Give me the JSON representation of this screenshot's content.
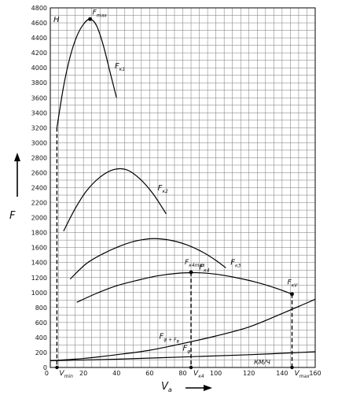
{
  "chart_data": {
    "type": "line",
    "xlim": [
      0,
      160
    ],
    "ylim": [
      0,
      4800
    ],
    "x_ticks": [
      0,
      20,
      40,
      60,
      80,
      100,
      120,
      140,
      160
    ],
    "y_ticks": [
      0,
      200,
      400,
      600,
      800,
      1000,
      1200,
      1400,
      1600,
      1800,
      2000,
      2200,
      2400,
      2600,
      2800,
      3000,
      3200,
      3400,
      3600,
      3800,
      4000,
      4200,
      4400,
      4600,
      4800
    ],
    "grid": true,
    "xlabel_main": "V",
    "xlabel_sub": "a",
    "ylabel": "F",
    "y_unit": "H",
    "x_unit": "КМ/Ч",
    "series": [
      {
        "name": "F",
        "name_sub": "к1",
        "x": [
          4,
          8,
          12,
          16,
          20,
          24,
          28,
          32,
          36,
          40
        ],
        "y": [
          3200,
          3750,
          4150,
          4420,
          4580,
          4650,
          4560,
          4300,
          3950,
          3600
        ]
      },
      {
        "name": "F",
        "name_sub": "к2",
        "x": [
          8,
          15,
          22,
          30,
          38,
          46,
          54,
          62,
          70
        ],
        "y": [
          1820,
          2120,
          2360,
          2540,
          2640,
          2640,
          2520,
          2320,
          2050
        ]
      },
      {
        "name": "F",
        "name_sub": "к3",
        "x": [
          12,
          22,
          32,
          42,
          52,
          62,
          72,
          82,
          92,
          100,
          106
        ],
        "y": [
          1180,
          1390,
          1520,
          1620,
          1690,
          1720,
          1700,
          1640,
          1540,
          1430,
          1330
        ]
      },
      {
        "name": "F",
        "name_sub": "к4",
        "x": [
          16,
          28,
          40,
          52,
          64,
          76,
          88,
          100,
          112,
          124,
          136,
          146
        ],
        "y": [
          870,
          990,
          1090,
          1160,
          1220,
          1255,
          1265,
          1245,
          1200,
          1140,
          1060,
          980
        ]
      },
      {
        "name": "F",
        "name_sub": "φ + F",
        "name_sub2": "в",
        "x": [
          0,
          20,
          40,
          60,
          80,
          100,
          120,
          140,
          160
        ],
        "y": [
          90,
          120,
          170,
          230,
          320,
          420,
          540,
          720,
          910
        ]
      },
      {
        "name": "F",
        "name_sub": "φ",
        "x": [
          0,
          40,
          80,
          120,
          160
        ],
        "y": [
          90,
          110,
          140,
          170,
          210
        ]
      }
    ],
    "markers": [
      {
        "label": "F",
        "label_sub": "max",
        "x": 24,
        "y": 4650
      },
      {
        "label": "F",
        "label_sub": "к4max",
        "x": 85,
        "y": 1270
      },
      {
        "label": "F",
        "label_sub": "кV",
        "x": 146,
        "y": 980
      }
    ],
    "dashed_verticals": [
      {
        "label": "V",
        "label_sub": "min",
        "x": 4,
        "y": 3200
      },
      {
        "label": "V",
        "label_sub": "к4",
        "x": 85,
        "y": 1270
      },
      {
        "label": "V",
        "label_sub": "max",
        "x": 146,
        "y": 980
      }
    ]
  }
}
